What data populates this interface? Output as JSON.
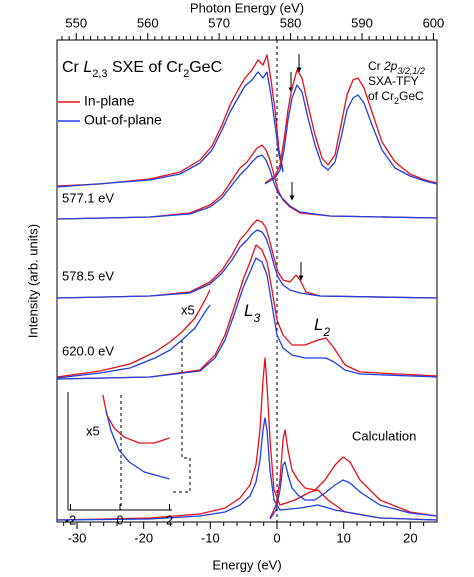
{
  "chart_data": [
    {
      "type": "line",
      "title": [
        "Cr ",
        "L",
        "2,3",
        " SXE of Cr",
        "2",
        "GeC"
      ],
      "x_label": "Energy (eV)",
      "x2_label": "Photon Energy (eV)",
      "y_label": "Intensity (arb. units)",
      "xlim": [
        -33,
        24
      ],
      "xticks": [
        -30,
        -20,
        -10,
        0,
        10,
        20
      ],
      "xminorticks": [
        -32,
        -28,
        -26,
        -24,
        -22,
        -18,
        -16,
        -14,
        -12,
        -8,
        -6,
        -4,
        -2,
        2,
        4,
        6,
        8,
        12,
        14,
        16,
        18,
        22
      ],
      "x2lim": [
        547.3,
        600.5
      ],
      "x2ticks": [
        550,
        560,
        570,
        580,
        590,
        600
      ],
      "x2minorticks": [
        548,
        549,
        551,
        552,
        553,
        554,
        555,
        556,
        557,
        558,
        559,
        561,
        562,
        563,
        564,
        565,
        566,
        567,
        568,
        569,
        571,
        572,
        573,
        574,
        575,
        576,
        577,
        578,
        579,
        581,
        582,
        583,
        584,
        585,
        586,
        587,
        588,
        589,
        591,
        592,
        593,
        594,
        595,
        596,
        597,
        598,
        599
      ],
      "ylim": [
        0,
        48.2
      ],
      "xas_label": [
        [
          "Cr ",
          "2p",
          "3/2,1/2"
        ],
        [
          "SXA-TFY"
        ],
        [
          "of Cr",
          "2",
          "GeC"
        ]
      ],
      "panel_labels": [
        "577.1 eV",
        "578.5 eV",
        "620.0 eV"
      ],
      "scale_label": "x5",
      "peak_labels": [
        [
          "L",
          "3"
        ],
        [
          "L",
          "2"
        ]
      ],
      "calc_label": "Calculation",
      "series": [
        {
          "name": "In-plane",
          "color": "#e8101a",
          "x": [
            -33,
            -26.55,
            -19.05,
            -14.55,
            -11.55,
            -9.75,
            -8.25,
            -7.05,
            -5.85,
            -4.8,
            -3.75,
            -2.85,
            -2.1,
            -1.5,
            -0.9,
            -0.3,
            0.3,
            0.9
          ],
          "values": [
            33.6,
            33.8,
            34.3,
            35.0,
            36.2,
            37.6,
            39.7,
            41.7,
            43.2,
            44.4,
            45.2,
            46.2,
            45.7,
            46.7,
            44.2,
            41.2,
            37.2,
            35.2
          ]
        },
        {
          "name": "Out-of-plane",
          "color": "#2040e0",
          "x": [
            -33,
            -19.05,
            -14.55,
            -11.55,
            -9.75,
            -8.25,
            -7.05,
            -5.85,
            -4.8,
            -3.75,
            -2.85,
            -2.1,
            -1.5,
            -0.9,
            -0.3,
            0.3,
            0.9
          ],
          "values": [
            33.5,
            34.2,
            34.8,
            35.9,
            37.2,
            39.2,
            41.0,
            42.4,
            43.6,
            44.2,
            45.0,
            44.4,
            45.0,
            42.7,
            39.7,
            36.7,
            35.0
          ]
        },
        {
          "color": "#e8101a",
          "axis": "x2",
          "x": [
            576.42,
            577.82,
            578.52,
            579.08,
            579.64,
            580.2,
            580.9,
            581.6,
            582.44,
            583.42,
            584.4,
            585.24,
            586.22,
            587.06,
            587.9,
            588.74,
            589.44,
            590.28,
            591.4,
            592.8,
            594.62,
            596.72,
            598.82,
            600.5
          ],
          "values": [
            33.9,
            34.6,
            35.7,
            38.2,
            41.2,
            43.4,
            45.2,
            44.4,
            41.7,
            38.7,
            36.4,
            35.7,
            36.7,
            39.7,
            42.7,
            44.2,
            44.4,
            43.4,
            41.0,
            38.0,
            36.0,
            34.8,
            34.2,
            33.9
          ]
        },
        {
          "color": "#2040e0",
          "axis": "x2",
          "x": [
            576.42,
            577.82,
            578.52,
            579.08,
            579.64,
            580.2,
            580.9,
            581.6,
            582.44,
            583.42,
            584.4,
            585.24,
            586.22,
            587.06,
            587.9,
            588.74,
            589.44,
            590.28,
            591.4,
            592.8,
            594.62,
            596.72,
            598.82,
            600.5
          ],
          "values": [
            33.8,
            34.4,
            35.2,
            37.2,
            40.2,
            42.4,
            43.7,
            43.0,
            40.4,
            37.7,
            35.7,
            35.2,
            36.0,
            38.4,
            41.2,
            42.4,
            42.7,
            41.9,
            39.7,
            37.2,
            35.4,
            34.6,
            34.1,
            33.8
          ]
        },
        {
          "color": "#e8101a",
          "x": [
            -33,
            -19.05,
            -13.05,
            -10.05,
            -8.25,
            -6.75,
            -5.55,
            -4.5,
            -3.75,
            -3.0,
            -2.25,
            -1.65,
            -1.05,
            -0.45,
            0.15,
            0.9,
            1.95,
            3.45,
            7.95,
            24
          ],
          "values": [
            30.3,
            30.5,
            30.9,
            31.7,
            32.7,
            34.2,
            35.4,
            36.0,
            36.7,
            37.4,
            37.7,
            37.2,
            36.2,
            34.7,
            33.2,
            32.2,
            31.5,
            30.9,
            30.6,
            30.4
          ]
        },
        {
          "color": "#2040e0",
          "x": [
            -33,
            -19.05,
            -13.05,
            -10.05,
            -8.25,
            -6.75,
            -5.55,
            -4.5,
            -3.75,
            -3.0,
            -2.25,
            -1.65,
            -1.05,
            -0.45,
            0.15,
            0.9,
            1.95,
            3.45,
            7.95,
            24
          ],
          "values": [
            30.3,
            30.5,
            30.8,
            31.5,
            32.4,
            33.7,
            34.7,
            35.4,
            36.0,
            36.5,
            36.7,
            36.2,
            35.2,
            33.9,
            32.9,
            32.3,
            31.6,
            31.0,
            30.6,
            30.4
          ]
        },
        {
          "color": "#e8101a",
          "x": [
            -33,
            -19.05,
            -13.05,
            -10.05,
            -8.25,
            -6.75,
            -5.55,
            -4.5,
            -3.75,
            -3.0,
            -2.25,
            -1.65,
            -1.05,
            -0.45,
            0.15,
            0.9,
            1.95,
            2.85,
            3.45,
            4.35,
            6.45,
            24
          ],
          "values": [
            22.4,
            22.6,
            23.0,
            24.0,
            25.2,
            26.7,
            28.2,
            29.0,
            29.7,
            30.2,
            30.0,
            29.4,
            28.0,
            26.4,
            25.0,
            24.2,
            24.0,
            24.7,
            24.2,
            23.0,
            22.6,
            22.4
          ]
        },
        {
          "color": "#2040e0",
          "x": [
            -33,
            -19.05,
            -13.05,
            -10.05,
            -8.25,
            -6.75,
            -5.55,
            -4.5,
            -3.75,
            -3.0,
            -2.25,
            -1.65,
            -1.05,
            -0.45,
            0.15,
            0.9,
            1.95,
            3.45,
            6.45,
            24
          ],
          "values": [
            22.4,
            22.6,
            22.9,
            23.8,
            24.9,
            26.2,
            27.5,
            28.2,
            28.8,
            29.2,
            29.0,
            28.4,
            27.2,
            25.7,
            24.5,
            23.7,
            23.2,
            22.9,
            22.6,
            22.4
          ]
        },
        {
          "color": "#e8101a",
          "x": [
            -33,
            -26.55,
            -22.05,
            -18.3,
            -16.05,
            -14.25,
            -12.3,
            -10.8,
            -10.05
          ],
          "values": [
            14.5,
            15.1,
            15.8,
            17.0,
            18.0,
            19.0,
            20.4,
            22.2,
            23.2
          ]
        },
        {
          "color": "#2040e0",
          "x": [
            -33,
            -26.55,
            -22.05,
            -18.3,
            -16.05,
            -14.25,
            -12.3,
            -10.8,
            -10.05
          ],
          "values": [
            14.4,
            14.9,
            15.4,
            16.4,
            17.2,
            18.2,
            19.4,
            21.0,
            21.7
          ]
        },
        {
          "color": "#e8101a",
          "x": [
            -33,
            -19.05,
            -11.55,
            -9.3,
            -7.8,
            -6.3,
            -5.1,
            -4.05,
            -3.15,
            -2.25,
            -1.5,
            -0.75,
            0,
            0.9,
            2.25,
            4.2,
            6.15,
            7.35,
            8.55,
            10.2,
            12.45,
            24
          ],
          "values": [
            14.3,
            14.5,
            15.2,
            16.7,
            18.7,
            21.7,
            24.2,
            26.0,
            27.7,
            27.2,
            26.0,
            23.2,
            20.2,
            18.7,
            17.7,
            17.7,
            18.2,
            18.4,
            17.4,
            15.7,
            15.0,
            14.6
          ]
        },
        {
          "color": "#2040e0",
          "x": [
            -33,
            -19.05,
            -11.55,
            -9.3,
            -7.8,
            -6.3,
            -5.1,
            -4.05,
            -3.15,
            -2.25,
            -1.5,
            -0.75,
            0,
            0.9,
            2.25,
            4.2,
            6.15,
            7.35,
            8.55,
            10.2,
            12.45,
            24
          ],
          "values": [
            14.3,
            14.5,
            15.1,
            16.4,
            18.2,
            21.0,
            23.4,
            25.0,
            26.4,
            26.0,
            24.7,
            21.7,
            18.7,
            17.4,
            16.7,
            16.4,
            16.4,
            16.4,
            16.0,
            15.2,
            14.8,
            14.5
          ]
        },
        {
          "color": "#e8101a",
          "x": [
            -33,
            -19.05,
            -11.55,
            -7.8,
            -5.55,
            -4.05,
            -3.15,
            -2.55,
            -2.1,
            -1.8,
            -1.5,
            -1.05,
            -0.45,
            0.45,
            2.7,
            4.95,
            6.15,
            7.65,
            10.2,
            15.45,
            24
          ],
          "values": [
            0.2,
            0.4,
            0.8,
            1.4,
            2.4,
            3.7,
            5.7,
            9.2,
            14.2,
            16.4,
            13.7,
            8.2,
            3.2,
            1.7,
            2.2,
            3.0,
            3.2,
            2.2,
            1.0,
            0.4,
            0.2
          ]
        },
        {
          "color": "#2040e0",
          "x": [
            -33,
            -19.05,
            -11.55,
            -7.8,
            -5.55,
            -4.05,
            -3.15,
            -2.55,
            -2.1,
            -1.8,
            -1.5,
            -1.05,
            -0.45,
            0.45,
            3.45,
            6.15,
            8.7,
            15.45,
            24
          ],
          "values": [
            0.2,
            0.3,
            0.6,
            1.0,
            1.7,
            2.6,
            4.0,
            6.2,
            9.2,
            10.4,
            9.2,
            5.2,
            2.2,
            1.2,
            1.4,
            1.7,
            1.2,
            0.4,
            0.2
          ]
        },
        {
          "color": "#e8101a",
          "x": [
            -1.05,
            -0.15,
            0.45,
            0.9,
            1.2,
            1.65,
            2.25,
            3.15,
            4.2,
            5.7,
            7.2,
            8.7,
            9.9,
            10.95,
            12.45,
            15.45,
            19.95,
            24
          ],
          "values": [
            0.4,
            1.7,
            4.2,
            8.2,
            9.2,
            7.2,
            5.2,
            4.2,
            3.4,
            3.2,
            4.2,
            5.7,
            6.5,
            6.0,
            4.2,
            2.2,
            1.0,
            0.6
          ]
        },
        {
          "color": "#2040e0",
          "x": [
            -1.05,
            -0.15,
            0.45,
            0.9,
            1.2,
            1.65,
            2.25,
            3.15,
            4.2,
            5.7,
            7.2,
            8.7,
            9.9,
            10.95,
            12.45,
            15.45,
            19.95,
            24
          ],
          "values": [
            0.3,
            1.2,
            3.2,
            5.7,
            6.0,
            4.7,
            3.4,
            2.7,
            2.2,
            2.2,
            2.9,
            3.7,
            4.2,
            3.9,
            3.0,
            1.7,
            0.9,
            0.6
          ]
        }
      ]
    },
    {
      "type": "line",
      "xlim": [
        -2.1,
        2.1
      ],
      "xticks": [
        -2,
        0,
        2
      ],
      "ylim": [
        0,
        10
      ],
      "label": "x5",
      "series": [
        {
          "color": "#e8101a",
          "x": [
            -0.69,
            -0.53,
            -0.24,
            0.16,
            0.78,
            1.39,
            2.0
          ],
          "values": [
            9.75,
            8.05,
            6.95,
            6.19,
            5.68,
            5.68,
            6.1
          ]
        },
        {
          "color": "#2040e0",
          "x": [
            -0.57,
            -0.37,
            -0.04,
            0.37,
            0.98,
            2.0
          ],
          "values": [
            8.47,
            6.78,
            5.08,
            4.07,
            3.22,
            2.63
          ]
        }
      ]
    }
  ]
}
